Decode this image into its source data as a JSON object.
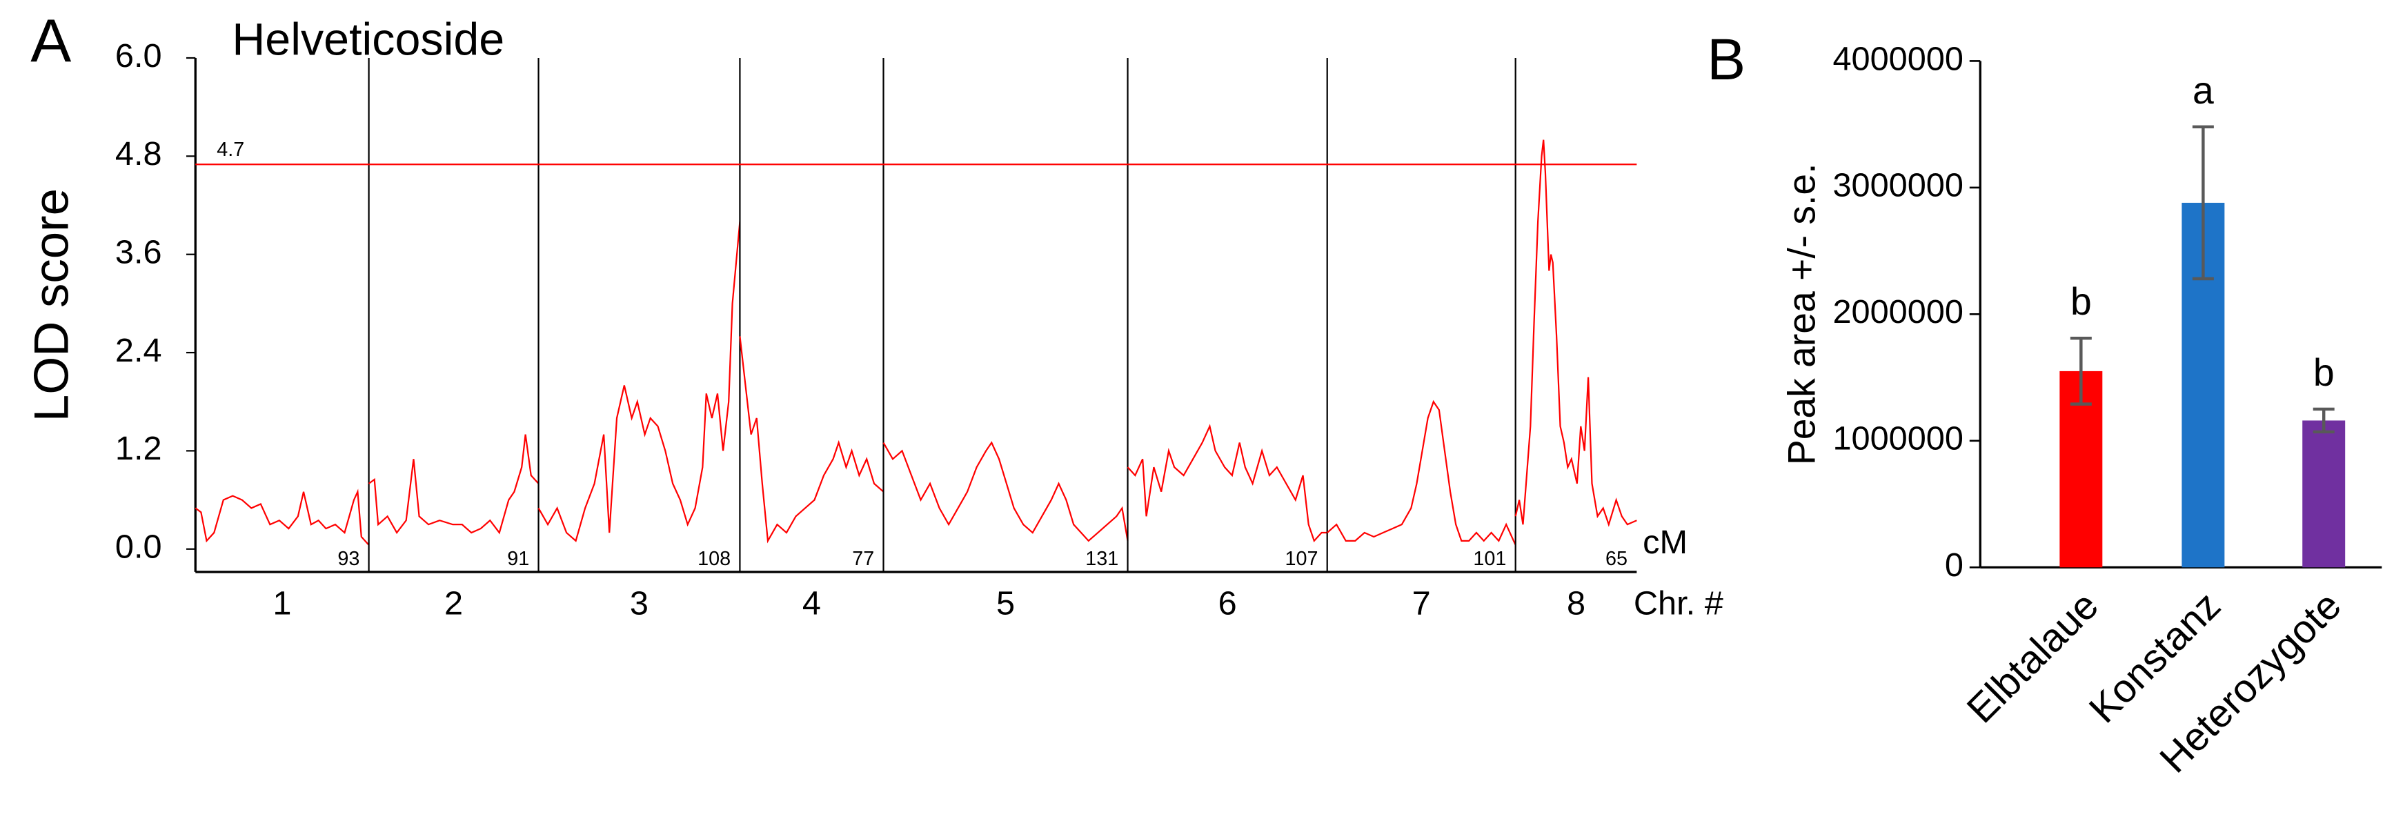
{
  "chart_data": [
    {
      "type": "line",
      "panel": "A",
      "title": "Helveticoside",
      "ylabel": "LOD score",
      "xunit": "cM",
      "xlabel": "Chr. #",
      "color": "#ff0000",
      "threshold": 4.7,
      "ylim": [
        0,
        6
      ],
      "yticks": [
        {
          "value": 0,
          "label": "0.0"
        },
        {
          "value": 1.2,
          "label": "1.2"
        },
        {
          "value": 2.4,
          "label": "2.4"
        },
        {
          "value": 3.6,
          "label": "3.6"
        },
        {
          "value": 4.8,
          "label": "4.8"
        },
        {
          "value": 6,
          "label": "6.0"
        }
      ],
      "series": [
        {
          "name": "1",
          "length": 93,
          "x": [
            0,
            3,
            6,
            10,
            15,
            20,
            25,
            30,
            35,
            40,
            45,
            50,
            55,
            58,
            62,
            66,
            70,
            75,
            80,
            85,
            87,
            89,
            93
          ],
          "values": [
            0.5,
            0.45,
            0.1,
            0.2,
            0.6,
            0.65,
            0.6,
            0.5,
            0.55,
            0.3,
            0.35,
            0.25,
            0.4,
            0.7,
            0.3,
            0.35,
            0.25,
            0.3,
            0.2,
            0.6,
            0.7,
            0.15,
            0.05
          ]
        },
        {
          "name": "2",
          "length": 91,
          "x": [
            0,
            3,
            5,
            10,
            15,
            20,
            24,
            27,
            32,
            38,
            45,
            50,
            55,
            60,
            65,
            70,
            75,
            78,
            82,
            84,
            87,
            91
          ],
          "values": [
            0.8,
            0.85,
            0.3,
            0.4,
            0.2,
            0.35,
            1.1,
            0.4,
            0.3,
            0.35,
            0.3,
            0.3,
            0.2,
            0.25,
            0.35,
            0.2,
            0.6,
            0.7,
            1.0,
            1.4,
            0.9,
            0.8
          ]
        },
        {
          "name": "3",
          "length": 108,
          "x": [
            0,
            5,
            10,
            15,
            20,
            25,
            30,
            35,
            38,
            42,
            46,
            50,
            53,
            57,
            60,
            64,
            68,
            72,
            76,
            80,
            84,
            88,
            90,
            93,
            96,
            99,
            102,
            104,
            106,
            108
          ],
          "values": [
            0.5,
            0.3,
            0.5,
            0.2,
            0.1,
            0.5,
            0.8,
            1.4,
            0.2,
            1.6,
            2.0,
            1.6,
            1.8,
            1.4,
            1.6,
            1.5,
            1.2,
            0.8,
            0.6,
            0.3,
            0.5,
            1.0,
            1.9,
            1.6,
            1.9,
            1.2,
            1.8,
            3.0,
            3.5,
            4.0
          ]
        },
        {
          "name": "4",
          "length": 77,
          "x": [
            0,
            3,
            6,
            9,
            12,
            15,
            20,
            25,
            30,
            35,
            40,
            45,
            50,
            53,
            57,
            60,
            64,
            68,
            72,
            77
          ],
          "values": [
            2.6,
            2.0,
            1.4,
            1.6,
            0.8,
            0.1,
            0.3,
            0.2,
            0.4,
            0.5,
            0.6,
            0.9,
            1.1,
            1.3,
            1.0,
            1.2,
            0.9,
            1.1,
            0.8,
            0.7
          ]
        },
        {
          "name": "5",
          "length": 131,
          "x": [
            0,
            5,
            10,
            15,
            20,
            25,
            30,
            35,
            40,
            45,
            50,
            55,
            58,
            62,
            66,
            70,
            75,
            80,
            85,
            90,
            94,
            98,
            102,
            106,
            110,
            115,
            120,
            125,
            128,
            131
          ],
          "values": [
            1.3,
            1.1,
            1.2,
            0.9,
            0.6,
            0.8,
            0.5,
            0.3,
            0.5,
            0.7,
            1.0,
            1.2,
            1.3,
            1.1,
            0.8,
            0.5,
            0.3,
            0.2,
            0.4,
            0.6,
            0.8,
            0.6,
            0.3,
            0.2,
            0.1,
            0.2,
            0.3,
            0.4,
            0.5,
            0.1
          ]
        },
        {
          "name": "6",
          "length": 107,
          "x": [
            0,
            4,
            8,
            10,
            14,
            18,
            22,
            25,
            30,
            35,
            40,
            44,
            47,
            52,
            56,
            60,
            63,
            67,
            72,
            76,
            80,
            85,
            90,
            94,
            97,
            100,
            104,
            107
          ],
          "values": [
            1.0,
            0.9,
            1.1,
            0.4,
            1.0,
            0.7,
            1.2,
            1.0,
            0.9,
            1.1,
            1.3,
            1.5,
            1.2,
            1.0,
            0.9,
            1.3,
            1.0,
            0.8,
            1.2,
            0.9,
            1.0,
            0.8,
            0.6,
            0.9,
            0.3,
            0.1,
            0.2,
            0.2
          ]
        },
        {
          "name": "7",
          "length": 101,
          "x": [
            0,
            5,
            10,
            15,
            20,
            25,
            30,
            35,
            40,
            45,
            48,
            51,
            54,
            57,
            60,
            63,
            66,
            69,
            72,
            76,
            80,
            84,
            88,
            92,
            96,
            101
          ],
          "values": [
            0.2,
            0.3,
            0.1,
            0.1,
            0.2,
            0.15,
            0.2,
            0.25,
            0.3,
            0.5,
            0.8,
            1.2,
            1.6,
            1.8,
            1.7,
            1.2,
            0.7,
            0.3,
            0.1,
            0.1,
            0.2,
            0.1,
            0.2,
            0.1,
            0.3,
            0.05
          ]
        },
        {
          "name": "8",
          "length": 65,
          "x": [
            0,
            2,
            4,
            6,
            8,
            10,
            12,
            14,
            15,
            16,
            18,
            19,
            20,
            22,
            24,
            26,
            28,
            30,
            33,
            35,
            37,
            39,
            41,
            44,
            47,
            50,
            54,
            57,
            60,
            65
          ],
          "values": [
            0.4,
            0.6,
            0.3,
            0.9,
            1.5,
            2.8,
            4.0,
            4.8,
            5.0,
            4.6,
            3.4,
            3.6,
            3.5,
            2.6,
            1.5,
            1.3,
            1.0,
            1.1,
            0.8,
            1.5,
            1.2,
            2.1,
            0.8,
            0.4,
            0.5,
            0.3,
            0.6,
            0.4,
            0.3,
            0.35
          ]
        }
      ]
    },
    {
      "type": "bar",
      "panel": "B",
      "ylabel": "Peak area +/- s.e.",
      "categories": [
        "Elbtalaue",
        "Konstanz",
        "Heterozygote"
      ],
      "values": [
        1550000,
        2880000,
        1160000
      ],
      "errors": [
        260000,
        600000,
        90000
      ],
      "annotations": [
        "b",
        "a",
        "b"
      ],
      "colors": [
        "#ff0000",
        "#1e74c8",
        "#7030a0"
      ],
      "error_color": "#595959",
      "ylim": [
        0,
        4000000
      ],
      "yticks": [
        0,
        1000000,
        2000000,
        3000000,
        4000000
      ]
    }
  ]
}
